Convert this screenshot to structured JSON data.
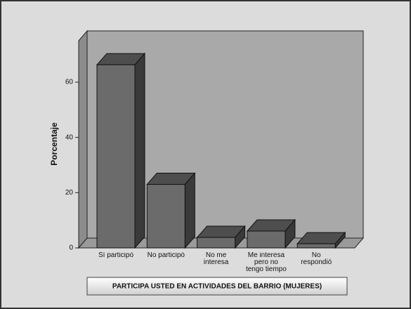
{
  "chart_data": {
    "type": "bar3d",
    "title": "PARTICIPA USTED EN  ACTIVIDADES DEL BARRIO (MUJERES)",
    "y_label": "Porcentaje",
    "categories": [
      "Sí participó",
      "No participó",
      "No me interesa",
      "Me interesa pero no tengo tiempo",
      "No respondió"
    ],
    "values": [
      66.3,
      23,
      3.8,
      6.1,
      1.5
    ],
    "color": "#6b6b6b",
    "ylim": [
      0,
      75
    ],
    "yticks": [
      0,
      20,
      40,
      60
    ]
  }
}
